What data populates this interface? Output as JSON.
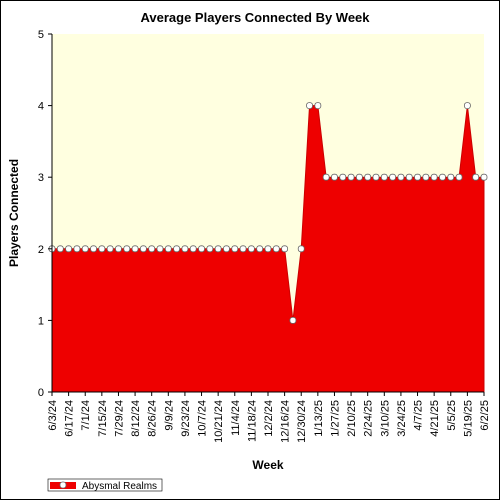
{
  "chart_data": {
    "type": "area",
    "title": "Average Players Connected By Week",
    "xlabel": "Week",
    "ylabel": "Players Connected",
    "ylim": [
      0,
      5
    ],
    "yticks": [
      0,
      1,
      2,
      3,
      4,
      5
    ],
    "grid": false,
    "legend_position": "bottom-left",
    "colors": {
      "fill": "#ee0000",
      "line": "#cc0000",
      "plot_background": "#ffffe0",
      "marker_fill": "#ffffff"
    },
    "x": [
      "6/3/24",
      "6/10/24",
      "6/17/24",
      "6/24/24",
      "7/1/24",
      "7/8/24",
      "7/15/24",
      "7/22/24",
      "7/29/24",
      "8/5/24",
      "8/12/24",
      "8/19/24",
      "8/26/24",
      "9/2/24",
      "9/9/24",
      "9/16/24",
      "9/23/24",
      "9/30/24",
      "10/7/24",
      "10/14/24",
      "10/21/24",
      "10/28/24",
      "11/4/24",
      "11/11/24",
      "11/18/24",
      "11/25/24",
      "12/2/24",
      "12/9/24",
      "12/16/24",
      "12/23/24",
      "12/30/24",
      "1/6/25",
      "1/13/25",
      "1/20/25",
      "1/27/25",
      "2/3/25",
      "2/10/25",
      "2/17/25",
      "2/24/25",
      "3/3/25",
      "3/10/25",
      "3/17/25",
      "3/24/25",
      "3/31/25",
      "4/7/25",
      "4/14/25",
      "4/21/25",
      "4/28/25",
      "5/5/25",
      "5/12/25",
      "5/19/25",
      "5/26/25",
      "6/2/25"
    ],
    "xtick_labels": [
      "6/3/24",
      "6/17/24",
      "7/1/24",
      "7/15/24",
      "7/29/24",
      "8/12/24",
      "8/26/24",
      "9/9/24",
      "9/23/24",
      "10/7/24",
      "10/21/24",
      "11/4/24",
      "11/18/24",
      "12/2/24",
      "12/16/24",
      "12/30/24",
      "1/13/25",
      "1/27/25",
      "2/10/25",
      "2/24/25",
      "3/10/25",
      "3/24/25",
      "4/7/25",
      "4/21/25",
      "5/5/25",
      "5/19/25",
      "6/2/25"
    ],
    "series": [
      {
        "name": "Abysmal Realms",
        "values": [
          2,
          2,
          2,
          2,
          2,
          2,
          2,
          2,
          2,
          2,
          2,
          2,
          2,
          2,
          2,
          2,
          2,
          2,
          2,
          2,
          2,
          2,
          2,
          2,
          2,
          2,
          2,
          2,
          2,
          1,
          2,
          4,
          4,
          3,
          3,
          3,
          3,
          3,
          3,
          3,
          3,
          3,
          3,
          3,
          3,
          3,
          3,
          3,
          3,
          3,
          4,
          3,
          3
        ]
      }
    ]
  }
}
